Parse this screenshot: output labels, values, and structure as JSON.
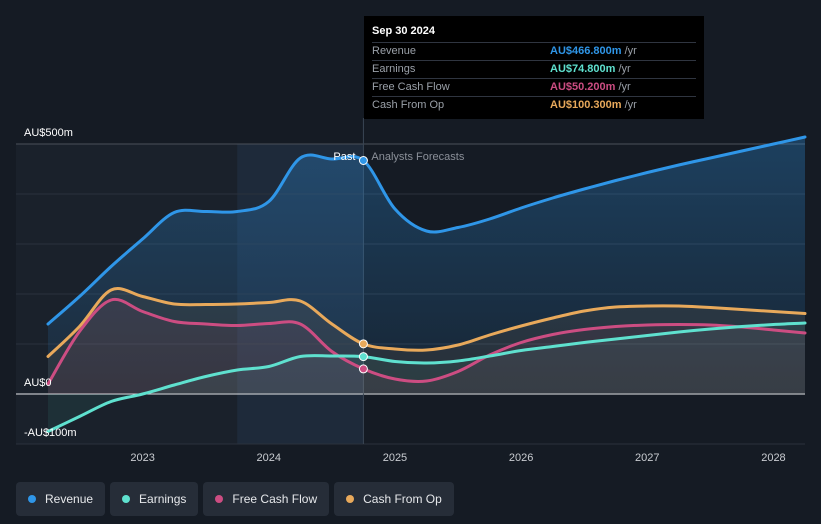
{
  "chart_data": {
    "type": "line",
    "y_axis_labels": [
      "AU$500m",
      "AU$0",
      "-AU$100m"
    ],
    "x_tick_labels": [
      "2023",
      "2024",
      "2025",
      "2026",
      "2027",
      "2028"
    ],
    "x_ticks": [
      2023,
      2024,
      2025,
      2026,
      2027,
      2028
    ],
    "xlim": [
      2022.25,
      2028.25
    ],
    "ylim": [
      -100,
      500
    ],
    "gridlines_at": [
      0,
      100,
      200,
      300,
      400,
      500
    ],
    "past_label": "Past",
    "forecast_label": "Analysts Forecasts",
    "past_end_x": 2024.75,
    "highlight_start_x": 2023.75,
    "series": [
      {
        "name": "Revenue",
        "key": "revenue",
        "color": "#2f96e8",
        "points": [
          [
            2022.25,
            140
          ],
          [
            2022.5,
            195
          ],
          [
            2022.75,
            255
          ],
          [
            2023.0,
            310
          ],
          [
            2023.25,
            363
          ],
          [
            2023.5,
            365
          ],
          [
            2023.75,
            365
          ],
          [
            2024.0,
            385
          ],
          [
            2024.25,
            472
          ],
          [
            2024.5,
            470
          ],
          [
            2024.75,
            467
          ],
          [
            2025.0,
            370
          ],
          [
            2025.25,
            326
          ],
          [
            2025.5,
            333
          ],
          [
            2025.75,
            350
          ],
          [
            2026.0,
            372
          ],
          [
            2026.25,
            392
          ],
          [
            2026.5,
            410
          ],
          [
            2026.75,
            427
          ],
          [
            2027.0,
            443
          ],
          [
            2027.25,
            458
          ],
          [
            2027.5,
            472
          ],
          [
            2027.75,
            486
          ],
          [
            2028.0,
            500
          ],
          [
            2028.25,
            514
          ]
        ]
      },
      {
        "name": "Earnings",
        "key": "earnings",
        "color": "#5fe1cf",
        "points": [
          [
            2022.25,
            -75
          ],
          [
            2022.5,
            -45
          ],
          [
            2022.75,
            -15
          ],
          [
            2023.0,
            0
          ],
          [
            2023.25,
            18
          ],
          [
            2023.5,
            35
          ],
          [
            2023.75,
            48
          ],
          [
            2024.0,
            55
          ],
          [
            2024.25,
            75
          ],
          [
            2024.5,
            76
          ],
          [
            2024.75,
            74.8
          ],
          [
            2025.0,
            65
          ],
          [
            2025.25,
            62
          ],
          [
            2025.5,
            66
          ],
          [
            2025.75,
            76
          ],
          [
            2026.0,
            87
          ],
          [
            2026.25,
            95
          ],
          [
            2026.5,
            103
          ],
          [
            2026.75,
            110
          ],
          [
            2027.0,
            117
          ],
          [
            2027.25,
            124
          ],
          [
            2027.5,
            130
          ],
          [
            2027.75,
            135
          ],
          [
            2028.0,
            139
          ],
          [
            2028.25,
            142
          ]
        ]
      },
      {
        "name": "Free Cash Flow",
        "key": "fcf",
        "color": "#cc4d82",
        "points": [
          [
            2022.25,
            20
          ],
          [
            2022.5,
            125
          ],
          [
            2022.75,
            188
          ],
          [
            2023.0,
            165
          ],
          [
            2023.25,
            145
          ],
          [
            2023.5,
            140
          ],
          [
            2023.75,
            137
          ],
          [
            2024.0,
            141
          ],
          [
            2024.25,
            140
          ],
          [
            2024.5,
            85
          ],
          [
            2024.75,
            50.2
          ],
          [
            2025.0,
            30
          ],
          [
            2025.25,
            26
          ],
          [
            2025.5,
            45
          ],
          [
            2025.75,
            78
          ],
          [
            2026.0,
            103
          ],
          [
            2026.25,
            119
          ],
          [
            2026.5,
            129
          ],
          [
            2026.75,
            135
          ],
          [
            2027.0,
            138
          ],
          [
            2027.25,
            139
          ],
          [
            2027.5,
            138
          ],
          [
            2027.75,
            134
          ],
          [
            2028.0,
            128
          ],
          [
            2028.25,
            122
          ]
        ]
      },
      {
        "name": "Cash From Op",
        "key": "cfo",
        "color": "#e8a95b",
        "points": [
          [
            2022.25,
            75
          ],
          [
            2022.5,
            135
          ],
          [
            2022.75,
            208
          ],
          [
            2023.0,
            195
          ],
          [
            2023.25,
            180
          ],
          [
            2023.5,
            179
          ],
          [
            2023.75,
            180
          ],
          [
            2024.0,
            183
          ],
          [
            2024.25,
            186
          ],
          [
            2024.5,
            140
          ],
          [
            2024.75,
            100.3
          ],
          [
            2025.0,
            90
          ],
          [
            2025.25,
            88
          ],
          [
            2025.5,
            98
          ],
          [
            2025.75,
            118
          ],
          [
            2026.0,
            136
          ],
          [
            2026.25,
            152
          ],
          [
            2026.5,
            166
          ],
          [
            2026.75,
            174
          ],
          [
            2027.0,
            176
          ],
          [
            2027.25,
            176
          ],
          [
            2027.5,
            173
          ],
          [
            2027.75,
            169
          ],
          [
            2028.0,
            165
          ],
          [
            2028.25,
            161
          ]
        ]
      }
    ]
  },
  "tooltip": {
    "date": "Sep 30 2024",
    "rows": [
      {
        "label": "Revenue",
        "value": "AU$466.800m",
        "unit": "/yr",
        "color": "#2f96e8"
      },
      {
        "label": "Earnings",
        "value": "AU$74.800m",
        "unit": "/yr",
        "color": "#5fe1cf"
      },
      {
        "label": "Free Cash Flow",
        "value": "AU$50.200m",
        "unit": "/yr",
        "color": "#cc4d82"
      },
      {
        "label": "Cash From Op",
        "value": "AU$100.300m",
        "unit": "/yr",
        "color": "#e8a95b"
      }
    ]
  },
  "legend": [
    {
      "label": "Revenue",
      "color": "#2f96e8"
    },
    {
      "label": "Earnings",
      "color": "#5fe1cf"
    },
    {
      "label": "Free Cash Flow",
      "color": "#cc4d82"
    },
    {
      "label": "Cash From Op",
      "color": "#e8a95b"
    }
  ]
}
